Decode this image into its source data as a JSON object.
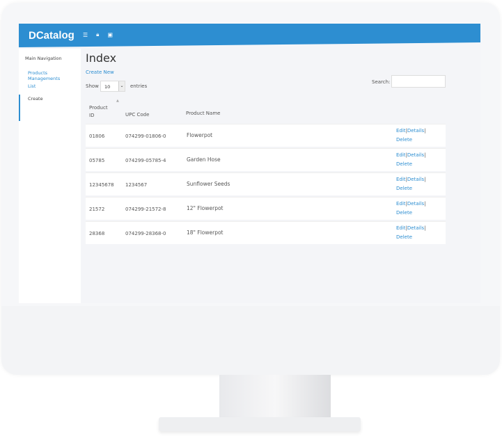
{
  "app": {
    "logo": "DCatalog"
  },
  "topbar": {
    "icons": [
      "menu-icon",
      "lock-icon",
      "edit-icon"
    ]
  },
  "sidebar": {
    "heading": "Main Navigation",
    "items": [
      {
        "label": "Products Managements"
      },
      {
        "label": "List"
      },
      {
        "label": "Create"
      }
    ]
  },
  "main": {
    "title": "Index",
    "create_new": "Create New",
    "show_label": "Show",
    "entries_value": "10",
    "entries_label": "entries",
    "search_label": "Search:",
    "search_value": ""
  },
  "table": {
    "headers": {
      "id": "Product ID",
      "upc": "UPC Code",
      "name": "Product Name"
    },
    "rows": [
      {
        "id": "01806",
        "upc": "074299-01806-0",
        "name": "Flowerpot"
      },
      {
        "id": "05785",
        "upc": "074299-05785-4",
        "name": "Garden Hose"
      },
      {
        "id": "12345678",
        "upc": "1234567",
        "name": "Sunflower Seeds"
      },
      {
        "id": "21572",
        "upc": "074299-21572-8",
        "name": "12\" Flowerpot"
      },
      {
        "id": "28368",
        "upc": "074299-28368-0",
        "name": "18\" Flowerpot"
      }
    ],
    "actions": {
      "edit": "Edit",
      "details": "Details",
      "delete": "Delete",
      "sep": "|"
    }
  }
}
